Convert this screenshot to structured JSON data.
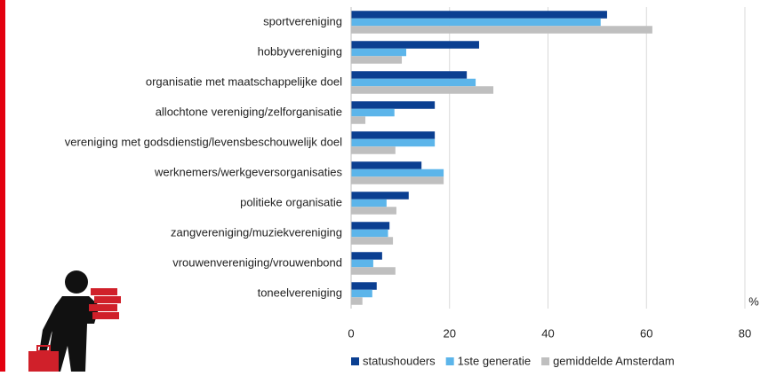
{
  "chart_data": {
    "type": "bar",
    "orientation": "horizontal",
    "categories": [
      "sportvereniging",
      "hobbyvereniging",
      "organisatie met maatschappelijke doel",
      "allochtone vereniging/zelforganisatie",
      "vereniging met godsdienstig/levensbeschouwelijk doel",
      "werknemers/werkgeversorganisaties",
      "politieke organisatie",
      "zangvereniging/muziekvereniging",
      "vrouwenvereniging/vrouwenbond",
      "toneelvereniging"
    ],
    "series": [
      {
        "name": "statushouders",
        "color": "#0b3f91",
        "values": [
          52,
          26,
          23.5,
          17,
          17,
          14.3,
          11.7,
          7.8,
          6.3,
          5.2
        ]
      },
      {
        "name": "1ste generatie",
        "color": "#5cb5ea",
        "values": [
          50.7,
          11.2,
          25.3,
          8.8,
          17,
          18.8,
          7.2,
          7.5,
          4.5,
          4.3
        ]
      },
      {
        "name": "gemiddelde Amsterdam",
        "color": "#bfbfbf",
        "values": [
          61.2,
          10.3,
          28.9,
          2.9,
          9,
          18.8,
          9.2,
          8.5,
          9,
          2.3
        ]
      }
    ],
    "xlabel": "%",
    "xlim": [
      0,
      80
    ],
    "xticks": [
      0,
      20,
      40,
      60,
      80
    ],
    "grid": true,
    "legend": "bottom"
  }
}
